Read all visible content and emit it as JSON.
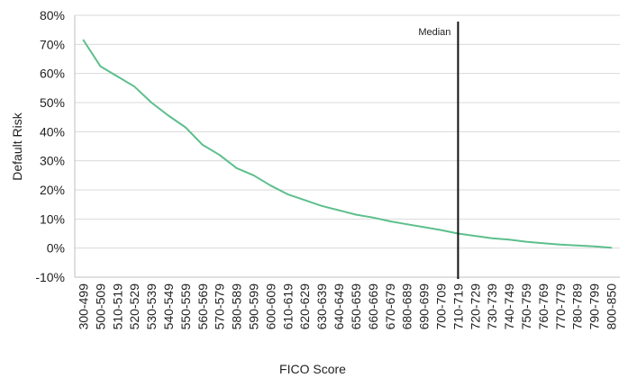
{
  "chart_data": {
    "type": "line",
    "title": "",
    "xlabel": "FICO Score",
    "ylabel": "Default Risk",
    "categories": [
      "300-499",
      "500-509",
      "510-519",
      "520-529",
      "530-539",
      "540-549",
      "550-559",
      "560-569",
      "570-579",
      "580-589",
      "590-599",
      "600-609",
      "610-619",
      "620-629",
      "630-639",
      "640-649",
      "650-659",
      "660-669",
      "670-679",
      "680-689",
      "690-699",
      "700-709",
      "710-719",
      "720-729",
      "730-739",
      "740-749",
      "750-759",
      "760-769",
      "770-779",
      "780-789",
      "790-799",
      "800-850"
    ],
    "series": [
      {
        "name": "",
        "color": "#5dbf8c",
        "values": [
          71.5,
          62.5,
          59,
          55.5,
          50,
          45.5,
          41.5,
          35.5,
          32,
          27.5,
          25,
          21.5,
          18.5,
          16.5,
          14.5,
          13,
          11.5,
          10.5,
          9.2,
          8.2,
          7.2,
          6.2,
          5.0,
          4.2,
          3.4,
          2.9,
          2.2,
          1.7,
          1.2,
          0.9,
          0.6,
          0.1
        ]
      }
    ],
    "yticks": [
      "80%",
      "70%",
      "60%",
      "50%",
      "40%",
      "30%",
      "20%",
      "10%",
      "0%",
      "-10%"
    ],
    "ylim": [
      -10,
      80
    ],
    "grid": true,
    "annotation": {
      "label": "Median",
      "category": "710-719"
    }
  }
}
